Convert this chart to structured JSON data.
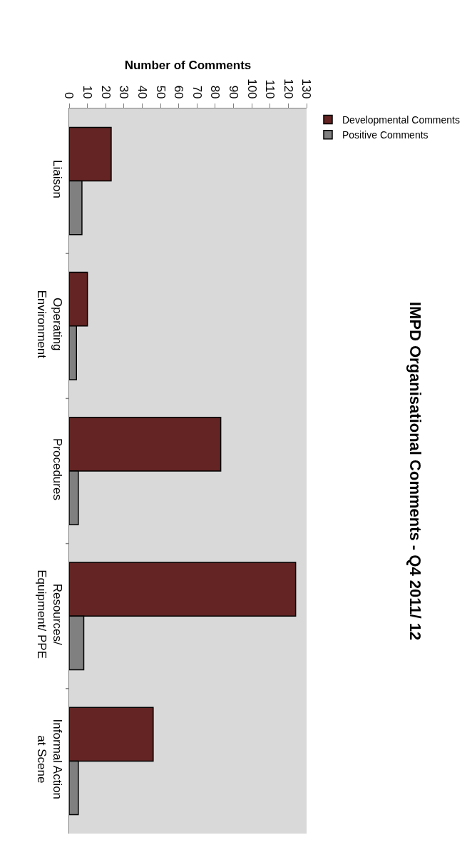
{
  "chart_data": {
    "type": "bar",
    "orientation": "horizontal",
    "title": "IMPD Organisational Comments - Q4 2011/ 12",
    "xlabel": "Number of Comments",
    "categories": [
      "Liaison",
      "Operating\nEnvironment",
      "Procedures",
      "Resources/\nEquipment/ PPE",
      "Informal Action\nat Scene"
    ],
    "series": [
      {
        "name": "Developmental Comments",
        "color": "#632423",
        "values": [
          23,
          10,
          83,
          124,
          46
        ]
      },
      {
        "name": "Positive Comments",
        "color": "#808080",
        "values": [
          7,
          4,
          5,
          8,
          5
        ]
      }
    ],
    "xlim": [
      0,
      130
    ],
    "xticks": [
      0,
      10,
      20,
      30,
      40,
      50,
      60,
      70,
      80,
      90,
      100,
      110,
      120,
      130
    ],
    "grid": false,
    "legend": "right"
  }
}
